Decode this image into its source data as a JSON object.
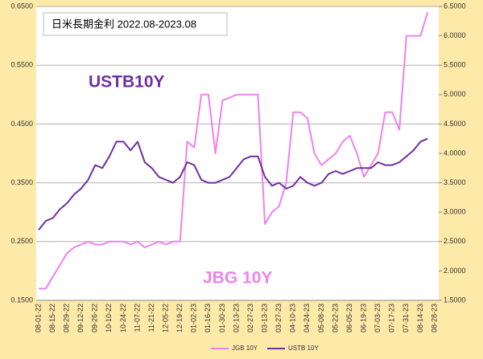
{
  "chart_data": {
    "type": "line",
    "title": "日米長期金利 2022.08-2023.08",
    "annotations": [
      "USTB10Y",
      "JBG 10Y"
    ],
    "categories": [
      "08-01-22",
      null,
      "08-15-22",
      null,
      "08-29-22",
      null,
      "09-12-22",
      null,
      "09-26-22",
      null,
      "10-10-22",
      null,
      "10-24-22",
      null,
      "11-07-22",
      null,
      "11-21-22",
      null,
      "12-05-22",
      null,
      "12-19-22",
      null,
      "01-02-23",
      null,
      "01-16-23",
      null,
      "01-30-23",
      null,
      "02-13-23",
      null,
      "02-27-23",
      null,
      "03-13-23",
      null,
      "03-27-23",
      null,
      "04-10-23",
      null,
      "04-24-23",
      null,
      "05-08-23",
      null,
      "05-22-23",
      null,
      "06-05-23",
      null,
      "06-19-23",
      null,
      "07-03-23",
      null,
      "07-17-23",
      null,
      "07-31-23",
      null,
      "08-14-23",
      null,
      "08-28-23"
    ],
    "series": [
      {
        "name": "JGB 10Y",
        "color": "#ee82ee",
        "values": [
          0.17,
          0.17,
          0.19,
          0.21,
          0.23,
          0.24,
          0.245,
          0.25,
          0.245,
          0.245,
          0.25,
          0.25,
          0.25,
          0.245,
          0.25,
          0.24,
          0.245,
          0.25,
          0.245,
          0.25,
          0.25,
          0.42,
          0.41,
          0.5,
          0.5,
          0.4,
          0.49,
          0.495,
          0.5,
          0.5,
          0.5,
          0.5,
          0.28,
          0.3,
          0.31,
          0.35,
          0.47,
          0.47,
          0.46,
          0.4,
          0.38,
          0.39,
          0.4,
          0.42,
          0.43,
          0.4,
          0.36,
          0.38,
          0.4,
          0.47,
          0.47,
          0.44,
          0.6,
          0.6,
          0.6,
          0.64,
          null
        ]
      },
      {
        "name": "USTB 10Y",
        "color": "#7030a0",
        "axis": "y2",
        "values": [
          2.7,
          2.85,
          2.9,
          3.05,
          3.15,
          3.3,
          3.4,
          3.55,
          3.8,
          3.75,
          3.95,
          4.2,
          4.2,
          4.05,
          4.2,
          3.85,
          3.75,
          3.6,
          3.55,
          3.5,
          3.6,
          3.85,
          3.8,
          3.55,
          3.5,
          3.5,
          3.55,
          3.6,
          3.75,
          3.9,
          3.95,
          3.95,
          3.6,
          3.45,
          3.5,
          3.4,
          3.45,
          3.6,
          3.5,
          3.45,
          3.5,
          3.65,
          3.7,
          3.65,
          3.7,
          3.75,
          3.75,
          3.75,
          3.85,
          3.8,
          3.8,
          3.85,
          3.95,
          4.05,
          4.2,
          4.25,
          null
        ]
      }
    ],
    "ylim": [
      0.15,
      0.65
    ],
    "yticks": [
      {
        "value": 0.15,
        "label": "0.1500"
      },
      {
        "value": 0.25,
        "label": "0.2500"
      },
      {
        "value": 0.35,
        "label": "0.3500"
      },
      {
        "value": 0.45,
        "label": "0.4500"
      },
      {
        "value": 0.55,
        "label": "0.5500"
      },
      {
        "value": 0.65,
        "label": "0.6500"
      }
    ],
    "y2lim": [
      1.5,
      6.5
    ],
    "y2ticks": [
      {
        "value": 1.5,
        "label": "1.5000"
      },
      {
        "value": 2.0,
        "label": "2.0000"
      },
      {
        "value": 2.5,
        "label": "2.5000"
      },
      {
        "value": 3.0,
        "label": "3.0000"
      },
      {
        "value": 3.5,
        "label": "3.5000"
      },
      {
        "value": 4.0,
        "label": "4.0000"
      },
      {
        "value": 4.5,
        "label": "4.5000"
      },
      {
        "value": 5.0,
        "label": "5.0000"
      },
      {
        "value": 5.5,
        "label": "5.5000"
      },
      {
        "value": 6.0,
        "label": "6.0000"
      },
      {
        "value": 6.5,
        "label": "6.5000"
      }
    ],
    "grid": true,
    "legend": "bottom"
  }
}
